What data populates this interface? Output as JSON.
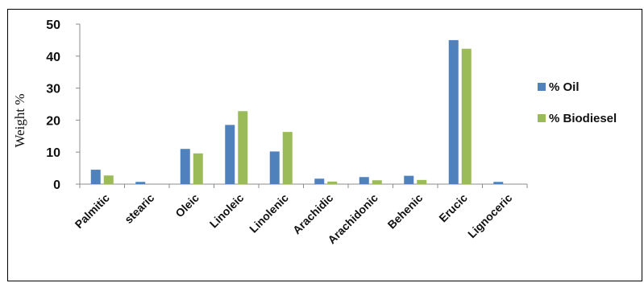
{
  "chart_data": {
    "type": "bar",
    "ylabel": "Weight %",
    "ylim": [
      0,
      50
    ],
    "yticks": [
      0,
      10,
      20,
      30,
      40,
      50
    ],
    "grid": false,
    "legend_position": "right",
    "categories": [
      "Palmitic",
      "stearic",
      "Oleic",
      "Linoleic",
      "Linolenic",
      "Arachidic",
      "Arachidonic",
      "Behenic",
      "Erucic",
      "Lignoceric"
    ],
    "series": [
      {
        "name": "% Oil",
        "color": "#4F81BD",
        "values": [
          4.5,
          0.7,
          11,
          18.5,
          10.2,
          1.7,
          2.2,
          2.6,
          45,
          0.7
        ]
      },
      {
        "name": "% Biodiesel",
        "color": "#9BBB59",
        "values": [
          2.7,
          0,
          9.6,
          22.8,
          16.3,
          0.8,
          1.2,
          1.3,
          42.3,
          0
        ]
      }
    ]
  }
}
